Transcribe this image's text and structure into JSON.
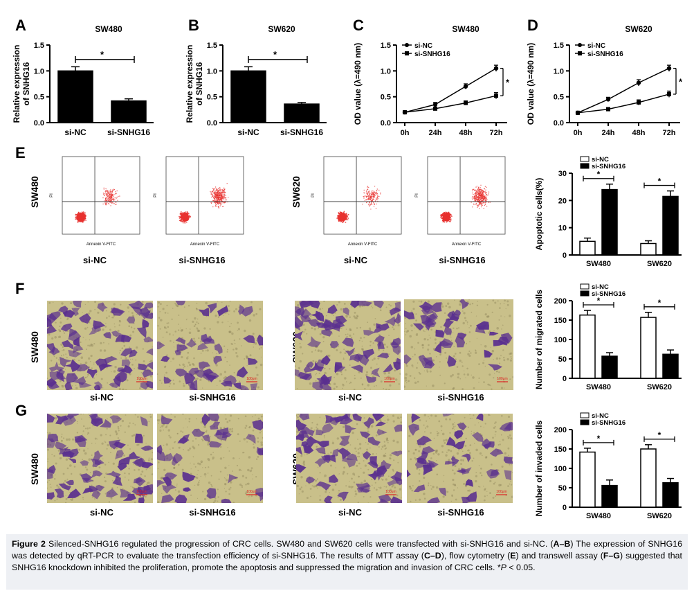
{
  "panels": {
    "A": "A",
    "B": "B",
    "C": "C",
    "D": "D",
    "E": "E",
    "F": "F",
    "G": "G"
  },
  "sample_labels": {
    "si_nc": "si-NC",
    "si_snhg16": "si-SNHG16",
    "sw480": "SW480",
    "sw620": "SW620"
  },
  "flow_axes": {
    "x": "Annexin V-FITC",
    "y": "PI"
  },
  "scale_bar": "100μm",
  "caption": {
    "fig_label": "Figure 2",
    "text1": " Silenced-SNHG16 regulated the progression of CRC cells. SW480 and SW620 cells were transfected with si-SNHG16 and si-NC. (",
    "ab": "A–B",
    "text2": ") The expression of SNHG16 was detected by qRT-PCR to evaluate the transfection efficiency of si-SNHG16. The results of MTT assay (",
    "cd": "C–D",
    "text3": "), flow cytometry (",
    "e": "E",
    "text4": ") and transwell assay (",
    "fg": "F–G",
    "text5": ") suggested that SNHG16 knockdown inhibited the proliferation, promote the apoptosis and suppressed the migration and invasion of CRC cells. *",
    "p": "P",
    "text6": " < 0.05."
  },
  "colors": {
    "bar_black": "#000000",
    "bar_white": "#ffffff",
    "facs_dot": "#e8312f",
    "stain_bg": "#c9c08a",
    "stain_cell": "#5a2f8f",
    "caption_bg": "#eef0f4"
  },
  "chart_data": [
    {
      "id": "A",
      "type": "bar",
      "title": "SW480",
      "ylabel": "Relative expression of SNHG16",
      "categories": [
        "si-NC",
        "si-SNHG16"
      ],
      "values": [
        1.0,
        0.42
      ],
      "errors": [
        0.08,
        0.04
      ],
      "fills": [
        "#000000",
        "#000000"
      ],
      "ylim": [
        0,
        1.5
      ],
      "yticks": [
        "0.0",
        "0.5",
        "1.0",
        "1.5"
      ],
      "ytick_values": [
        0,
        0.5,
        1.0,
        1.5
      ],
      "sig": "*"
    },
    {
      "id": "B",
      "type": "bar",
      "title": "SW620",
      "ylabel": "Relative expression of SNHG16",
      "categories": [
        "si-NC",
        "si-SNHG16"
      ],
      "values": [
        1.0,
        0.36
      ],
      "errors": [
        0.08,
        0.03
      ],
      "fills": [
        "#000000",
        "#000000"
      ],
      "ylim": [
        0,
        1.5
      ],
      "yticks": [
        "0.0",
        "0.5",
        "1.0",
        "1.5"
      ],
      "ytick_values": [
        0,
        0.5,
        1.0,
        1.5
      ],
      "sig": "*"
    },
    {
      "id": "C",
      "type": "line",
      "title": "SW480",
      "ylabel": "OD value (λ=490 nm)",
      "categories": [
        "0h",
        "24h",
        "48h",
        "72h"
      ],
      "series": [
        {
          "name": "si-NC",
          "marker": "circle",
          "values": [
            0.2,
            0.35,
            0.7,
            1.05
          ],
          "errors": [
            0.02,
            0.04,
            0.05,
            0.06
          ]
        },
        {
          "name": "si-SNHG16",
          "marker": "square",
          "values": [
            0.2,
            0.27,
            0.38,
            0.52
          ],
          "errors": [
            0.02,
            0.03,
            0.04,
            0.06
          ]
        }
      ],
      "ylim": [
        0,
        1.5
      ],
      "yticks": [
        "0.0",
        "0.5",
        "1.0",
        "1.5"
      ],
      "ytick_values": [
        0,
        0.5,
        1.0,
        1.5
      ],
      "sig": "*"
    },
    {
      "id": "D",
      "type": "line",
      "title": "SW620",
      "ylabel": "OD value (λ=490 nm)",
      "categories": [
        "0h",
        "24h",
        "48h",
        "72h"
      ],
      "series": [
        {
          "name": "si-NC",
          "marker": "circle",
          "values": [
            0.19,
            0.45,
            0.77,
            1.05
          ],
          "errors": [
            0.02,
            0.04,
            0.06,
            0.06
          ]
        },
        {
          "name": "si-SNHG16",
          "marker": "square",
          "values": [
            0.19,
            0.26,
            0.39,
            0.55
          ],
          "errors": [
            0.02,
            0.03,
            0.05,
            0.06
          ]
        }
      ],
      "ylim": [
        0,
        1.5
      ],
      "yticks": [
        "0.0",
        "0.5",
        "1.0",
        "1.5"
      ],
      "ytick_values": [
        0,
        0.5,
        1.0,
        1.5
      ],
      "sig": "*"
    },
    {
      "id": "E",
      "type": "bar",
      "title": "",
      "ylabel": "Apoptotic cells(%)",
      "categories": [
        "SW480",
        "SW620"
      ],
      "series": [
        {
          "name": "si-NC",
          "fill": "#ffffff",
          "values": [
            5,
            4.2
          ],
          "errors": [
            1.2,
            1.0
          ]
        },
        {
          "name": "si-SNHG16",
          "fill": "#000000",
          "values": [
            24,
            21.5
          ],
          "errors": [
            2.0,
            2.0
          ]
        }
      ],
      "ylim": [
        0,
        30
      ],
      "yticks": [
        "0",
        "10",
        "20",
        "30"
      ],
      "ytick_values": [
        0,
        10,
        20,
        30
      ],
      "sig": "*"
    },
    {
      "id": "F",
      "type": "bar",
      "title": "",
      "ylabel": "Number of migrated cells",
      "categories": [
        "SW480",
        "SW620"
      ],
      "series": [
        {
          "name": "si-NC",
          "fill": "#ffffff",
          "values": [
            163,
            157
          ],
          "errors": [
            12,
            13
          ]
        },
        {
          "name": "si-SNHG16",
          "fill": "#000000",
          "values": [
            57,
            62
          ],
          "errors": [
            9,
            11
          ]
        }
      ],
      "ylim": [
        0,
        200
      ],
      "yticks": [
        "0",
        "50",
        "100",
        "150",
        "200"
      ],
      "ytick_values": [
        0,
        50,
        100,
        150,
        200
      ],
      "sig": "*"
    },
    {
      "id": "G",
      "type": "bar",
      "title": "",
      "ylabel": "Number of invaded cells",
      "categories": [
        "SW480",
        "SW620"
      ],
      "series": [
        {
          "name": "si-NC",
          "fill": "#ffffff",
          "values": [
            142,
            150
          ],
          "errors": [
            10,
            11
          ]
        },
        {
          "name": "si-SNHG16",
          "fill": "#000000",
          "values": [
            56,
            63
          ],
          "errors": [
            14,
            11
          ]
        }
      ],
      "ylim": [
        0,
        200
      ],
      "yticks": [
        "0",
        "50",
        "100",
        "150",
        "200"
      ],
      "ytick_values": [
        0,
        50,
        100,
        150,
        200
      ],
      "sig": "*"
    }
  ]
}
